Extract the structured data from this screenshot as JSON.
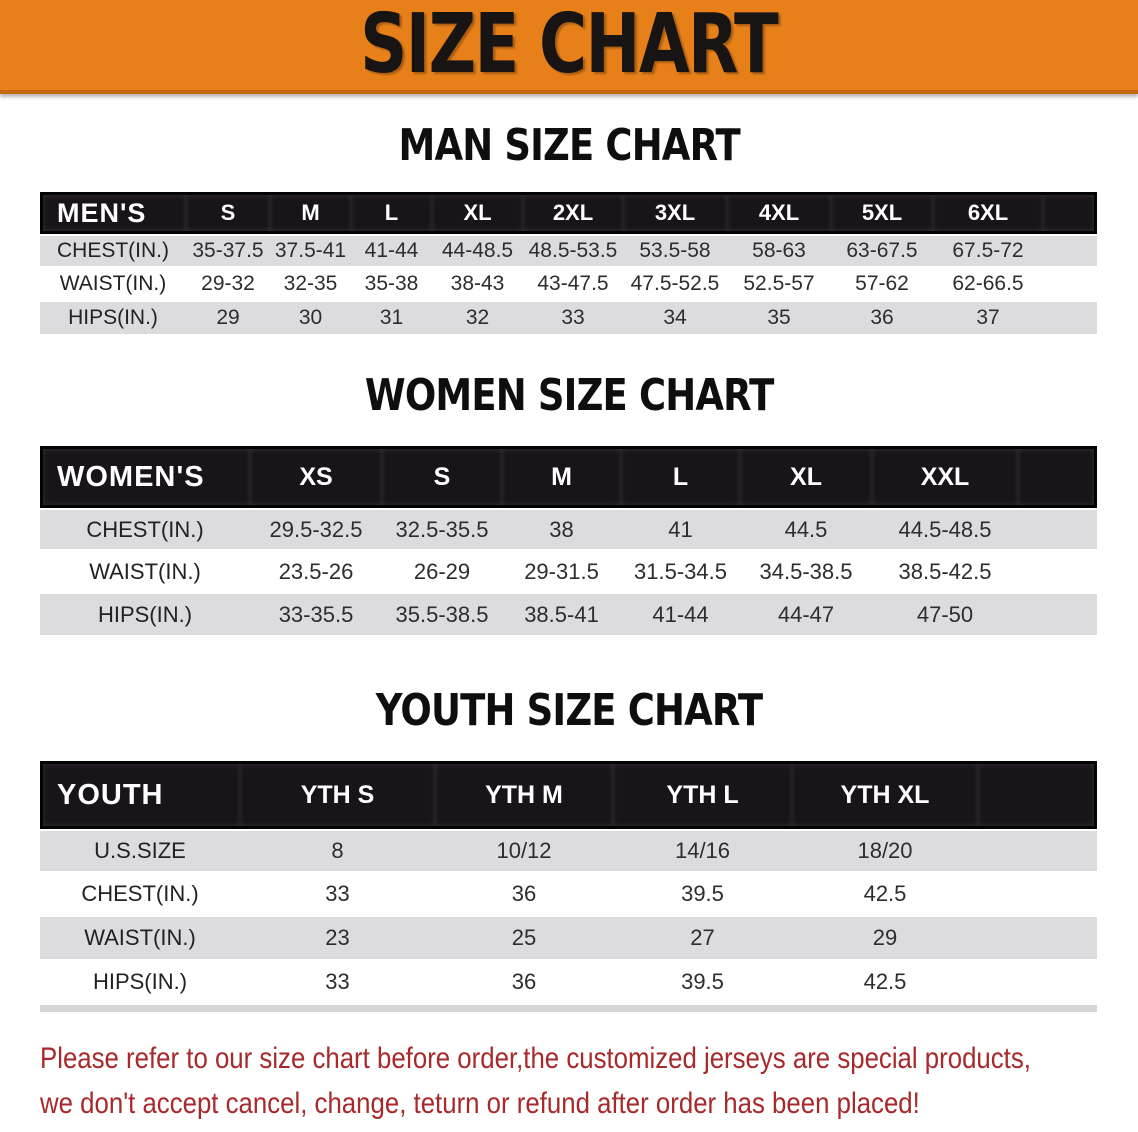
{
  "banner": {
    "title": "SIZE CHART",
    "bg_color": "#E8801A"
  },
  "sections": [
    {
      "id": "men",
      "heading": "MAN SIZE CHART",
      "table": {
        "header_label": "MEN'S",
        "columns": [
          "S",
          "M",
          "L",
          "XL",
          "2XL",
          "3XL",
          "4XL",
          "5XL",
          "6XL"
        ],
        "rows": [
          {
            "label": "CHEST(IN.)",
            "values": [
              "35-37.5",
              "37.5-41",
              "41-44",
              "44-48.5",
              "48.5-53.5",
              "53.5-58",
              "58-63",
              "63-67.5",
              "67.5-72"
            ]
          },
          {
            "label": "WAIST(IN.)",
            "values": [
              "29-32",
              "32-35",
              "35-38",
              "38-43",
              "43-47.5",
              "47.5-52.5",
              "52.5-57",
              "57-62",
              "62-66.5"
            ]
          },
          {
            "label": "HIPS(IN.)",
            "values": [
              "29",
              "30",
              "31",
              "32",
              "33",
              "34",
              "35",
              "36",
              "37"
            ]
          }
        ]
      }
    },
    {
      "id": "women",
      "heading": "WOMEN SIZE CHART",
      "table": {
        "header_label": "WOMEN'S",
        "columns": [
          "XS",
          "S",
          "M",
          "L",
          "XL",
          "XXL"
        ],
        "rows": [
          {
            "label": "CHEST(IN.)",
            "values": [
              "29.5-32.5",
              "32.5-35.5",
              "38",
              "41",
              "44.5",
              "44.5-48.5"
            ]
          },
          {
            "label": "WAIST(IN.)",
            "values": [
              "23.5-26",
              "26-29",
              "29-31.5",
              "31.5-34.5",
              "34.5-38.5",
              "38.5-42.5"
            ]
          },
          {
            "label": "HIPS(IN.)",
            "values": [
              "33-35.5",
              "35.5-38.5",
              "38.5-41",
              "41-44",
              "44-47",
              "47-50"
            ]
          }
        ]
      }
    },
    {
      "id": "youth",
      "heading": "YOUTH SIZE CHART",
      "table": {
        "header_label": "YOUTH",
        "columns": [
          "YTH S",
          "YTH M",
          "YTH L",
          "YTH XL"
        ],
        "rows": [
          {
            "label": "U.S.SIZE",
            "values": [
              "8",
              "10/12",
              "14/16",
              "18/20"
            ]
          },
          {
            "label": "CHEST(IN.)",
            "values": [
              "33",
              "36",
              "39.5",
              "42.5"
            ]
          },
          {
            "label": "WAIST(IN.)",
            "values": [
              "23",
              "25",
              "27",
              "29"
            ]
          },
          {
            "label": "HIPS(IN.)",
            "values": [
              "33",
              "36",
              "39.5",
              "42.5"
            ]
          }
        ]
      }
    }
  ],
  "footer_note": {
    "line1": "Please refer to our size chart before order,the customized jerseys are special products,",
    "line2": "we don't accept cancel, change, teturn or refund after order has been placed!",
    "color": "#A8292B"
  },
  "colors": {
    "banner_orange": "#E8801A",
    "header_bar_black": "#18141A",
    "row_gray": "#DCDCDE",
    "note_red": "#A8292B"
  }
}
